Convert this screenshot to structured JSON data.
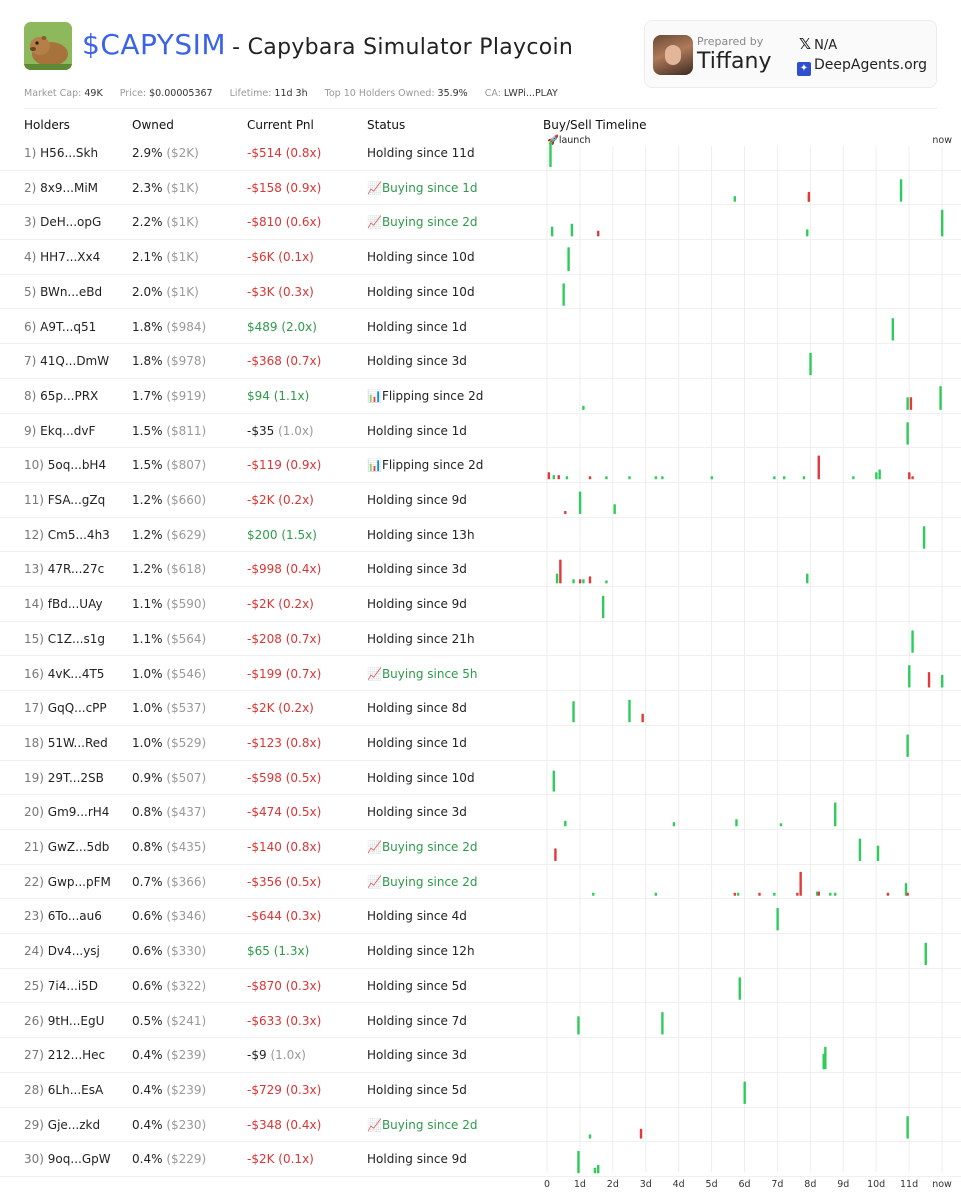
{
  "header": {
    "ticker": "$CAPYSIM",
    "subtitle": "- Capybara Simulator Playcoin",
    "prepared_label": "Prepared by",
    "prepared_name": "Tiffany",
    "x_handle": "N/A",
    "site": "DeepAgents.org"
  },
  "stats": {
    "market_cap_label": "Market Cap:",
    "market_cap": "49K",
    "price_label": "Price:",
    "price": "$0.00005367",
    "lifetime_label": "Lifetime:",
    "lifetime": "11d 3h",
    "top10_label": "Top 10 Holders Owned:",
    "top10": "35.9%",
    "ca_label": "CA:",
    "ca": "LWPi...PLAY"
  },
  "columns": {
    "holders": "Holders",
    "owned": "Owned",
    "pnl": "Current Pnl",
    "status": "Status",
    "timeline": "Buy/Sell Timeline"
  },
  "timeline_labels": {
    "launch": "🚀launch",
    "now": "now",
    "ticks": [
      "0",
      "1d",
      "2d",
      "3d",
      "4d",
      "5d",
      "6d",
      "7d",
      "8d",
      "9d",
      "10d",
      "11d",
      "now"
    ]
  },
  "colors": {
    "buy": "#2ecc5a",
    "sell": "#e03a3a",
    "accent": "#3b63e8"
  },
  "rows": [
    {
      "idx": "1)",
      "holder": "H56...Skh",
      "pct": "2.9%",
      "usd": "($2K)",
      "pnl": "-$514",
      "mult": "(0.8x)",
      "pnl_color": "red",
      "status": "Holding since 11d",
      "status_color": "dark"
    },
    {
      "idx": "2)",
      "holder": "8x9...MiM",
      "pct": "2.3%",
      "usd": "($1K)",
      "pnl": "-$158",
      "mult": "(0.9x)",
      "pnl_color": "red",
      "status": "📈Buying since 1d",
      "status_color": "green"
    },
    {
      "idx": "3)",
      "holder": "DeH...opG",
      "pct": "2.2%",
      "usd": "($1K)",
      "pnl": "-$810",
      "mult": "(0.6x)",
      "pnl_color": "red",
      "status": "📈Buying since 2d",
      "status_color": "green"
    },
    {
      "idx": "4)",
      "holder": "HH7...Xx4",
      "pct": "2.1%",
      "usd": "($1K)",
      "pnl": "-$6K",
      "mult": "(0.1x)",
      "pnl_color": "red",
      "status": "Holding since 10d",
      "status_color": "dark"
    },
    {
      "idx": "5)",
      "holder": "BWn...eBd",
      "pct": "2.0%",
      "usd": "($1K)",
      "pnl": "-$3K",
      "mult": "(0.3x)",
      "pnl_color": "red",
      "status": "Holding since 10d",
      "status_color": "dark"
    },
    {
      "idx": "6)",
      "holder": "A9T...q51",
      "pct": "1.8%",
      "usd": "($984)",
      "pnl": "$489",
      "mult": "(2.0x)",
      "pnl_color": "green",
      "status": "Holding since 1d",
      "status_color": "dark"
    },
    {
      "idx": "7)",
      "holder": "41Q...DmW",
      "pct": "1.8%",
      "usd": "($978)",
      "pnl": "-$368",
      "mult": "(0.7x)",
      "pnl_color": "red",
      "status": "Holding since 3d",
      "status_color": "dark"
    },
    {
      "idx": "8)",
      "holder": "65p...PRX",
      "pct": "1.7%",
      "usd": "($919)",
      "pnl": "$94",
      "mult": "(1.1x)",
      "pnl_color": "green",
      "status": "📊Flipping since 2d",
      "status_color": "dark"
    },
    {
      "idx": "9)",
      "holder": "Ekq...dvF",
      "pct": "1.5%",
      "usd": "($811)",
      "pnl": "-$35",
      "mult": "(1.0x)",
      "pnl_color": "dark",
      "status": "Holding since 1d",
      "status_color": "dark"
    },
    {
      "idx": "10)",
      "holder": "5oq...bH4",
      "pct": "1.5%",
      "usd": "($807)",
      "pnl": "-$119",
      "mult": "(0.9x)",
      "pnl_color": "red",
      "status": "📊Flipping since 2d",
      "status_color": "dark"
    },
    {
      "idx": "11)",
      "holder": "FSA...gZq",
      "pct": "1.2%",
      "usd": "($660)",
      "pnl": "-$2K",
      "mult": "(0.2x)",
      "pnl_color": "red",
      "status": "Holding since 9d",
      "status_color": "dark"
    },
    {
      "idx": "12)",
      "holder": "Cm5...4h3",
      "pct": "1.2%",
      "usd": "($629)",
      "pnl": "$200",
      "mult": "(1.5x)",
      "pnl_color": "green",
      "status": "Holding since 13h",
      "status_color": "dark"
    },
    {
      "idx": "13)",
      "holder": "47R...27c",
      "pct": "1.2%",
      "usd": "($618)",
      "pnl": "-$998",
      "mult": "(0.4x)",
      "pnl_color": "red",
      "status": "Holding since 3d",
      "status_color": "dark"
    },
    {
      "idx": "14)",
      "holder": "fBd...UAy",
      "pct": "1.1%",
      "usd": "($590)",
      "pnl": "-$2K",
      "mult": "(0.2x)",
      "pnl_color": "red",
      "status": "Holding since 9d",
      "status_color": "dark"
    },
    {
      "idx": "15)",
      "holder": "C1Z...s1g",
      "pct": "1.1%",
      "usd": "($564)",
      "pnl": "-$208",
      "mult": "(0.7x)",
      "pnl_color": "red",
      "status": "Holding since 21h",
      "status_color": "dark"
    },
    {
      "idx": "16)",
      "holder": "4vK...4T5",
      "pct": "1.0%",
      "usd": "($546)",
      "pnl": "-$199",
      "mult": "(0.7x)",
      "pnl_color": "red",
      "status": "📈Buying since 5h",
      "status_color": "green"
    },
    {
      "idx": "17)",
      "holder": "GqQ...cPP",
      "pct": "1.0%",
      "usd": "($537)",
      "pnl": "-$2K",
      "mult": "(0.2x)",
      "pnl_color": "red",
      "status": "Holding since 8d",
      "status_color": "dark"
    },
    {
      "idx": "18)",
      "holder": "51W...Red",
      "pct": "1.0%",
      "usd": "($529)",
      "pnl": "-$123",
      "mult": "(0.8x)",
      "pnl_color": "red",
      "status": "Holding since 1d",
      "status_color": "dark"
    },
    {
      "idx": "19)",
      "holder": "29T...2SB",
      "pct": "0.9%",
      "usd": "($507)",
      "pnl": "-$598",
      "mult": "(0.5x)",
      "pnl_color": "red",
      "status": "Holding since 10d",
      "status_color": "dark"
    },
    {
      "idx": "20)",
      "holder": "Gm9...rH4",
      "pct": "0.8%",
      "usd": "($437)",
      "pnl": "-$474",
      "mult": "(0.5x)",
      "pnl_color": "red",
      "status": "Holding since 3d",
      "status_color": "dark"
    },
    {
      "idx": "21)",
      "holder": "GwZ...5db",
      "pct": "0.8%",
      "usd": "($435)",
      "pnl": "-$140",
      "mult": "(0.8x)",
      "pnl_color": "red",
      "status": "📈Buying since 2d",
      "status_color": "green"
    },
    {
      "idx": "22)",
      "holder": "Gwp...pFM",
      "pct": "0.7%",
      "usd": "($366)",
      "pnl": "-$356",
      "mult": "(0.5x)",
      "pnl_color": "red",
      "status": "📈Buying since 2d",
      "status_color": "green"
    },
    {
      "idx": "23)",
      "holder": "6To...au6",
      "pct": "0.6%",
      "usd": "($346)",
      "pnl": "-$644",
      "mult": "(0.3x)",
      "pnl_color": "red",
      "status": "Holding since 4d",
      "status_color": "dark"
    },
    {
      "idx": "24)",
      "holder": "Dv4...ysj",
      "pct": "0.6%",
      "usd": "($330)",
      "pnl": "$65",
      "mult": "(1.3x)",
      "pnl_color": "green",
      "status": "Holding since 12h",
      "status_color": "dark"
    },
    {
      "idx": "25)",
      "holder": "7i4...i5D",
      "pct": "0.6%",
      "usd": "($322)",
      "pnl": "-$870",
      "mult": "(0.3x)",
      "pnl_color": "red",
      "status": "Holding since 5d",
      "status_color": "dark"
    },
    {
      "idx": "26)",
      "holder": "9tH...EgU",
      "pct": "0.5%",
      "usd": "($241)",
      "pnl": "-$633",
      "mult": "(0.3x)",
      "pnl_color": "red",
      "status": "Holding since 7d",
      "status_color": "dark"
    },
    {
      "idx": "27)",
      "holder": "212...Hec",
      "pct": "0.4%",
      "usd": "($239)",
      "pnl": "-$9",
      "mult": "(1.0x)",
      "pnl_color": "dark",
      "status": "Holding since 3d",
      "status_color": "dark"
    },
    {
      "idx": "28)",
      "holder": "6Lh...EsA",
      "pct": "0.4%",
      "usd": "($239)",
      "pnl": "-$729",
      "mult": "(0.3x)",
      "pnl_color": "red",
      "status": "Holding since 5d",
      "status_color": "dark"
    },
    {
      "idx": "29)",
      "holder": "Gje...zkd",
      "pct": "0.4%",
      "usd": "($230)",
      "pnl": "-$348",
      "mult": "(0.4x)",
      "pnl_color": "red",
      "status": "📈Buying since 2d",
      "status_color": "green"
    },
    {
      "idx": "30)",
      "holder": "9oq...GpW",
      "pct": "0.4%",
      "usd": "($229)",
      "pnl": "-$2K",
      "mult": "(0.1x)",
      "pnl_color": "red",
      "status": "Holding since 9d",
      "status_color": "dark"
    }
  ],
  "chart_data": {
    "type": "bar",
    "title": "Buy/Sell Timeline",
    "x_unit": "days since launch",
    "xlim": [
      0,
      12
    ],
    "series_names": [
      "buy",
      "sell"
    ],
    "bar_scale": "relative size, 0-1",
    "events": [
      [
        {
          "t": 0.1,
          "s": "b",
          "h": 0.9
        }
      ],
      [
        {
          "t": 5.7,
          "s": "b",
          "h": 0.2
        },
        {
          "t": 7.95,
          "s": "b",
          "h": 0.25
        },
        {
          "t": 7.95,
          "s": "s",
          "h": 0.35
        },
        {
          "t": 10.75,
          "s": "b",
          "h": 0.8
        }
      ],
      [
        {
          "t": 0.15,
          "s": "b",
          "h": 0.35
        },
        {
          "t": 0.75,
          "s": "b",
          "h": 0.45
        },
        {
          "t": 1.55,
          "s": "s",
          "h": 0.2
        },
        {
          "t": 7.9,
          "s": "b",
          "h": 0.25
        },
        {
          "t": 12.0,
          "s": "b",
          "h": 0.95
        }
      ],
      [
        {
          "t": 0.65,
          "s": "b",
          "h": 0.85
        }
      ],
      [
        {
          "t": 0.5,
          "s": "b",
          "h": 0.8
        }
      ],
      [
        {
          "t": 10.5,
          "s": "b",
          "h": 0.8
        }
      ],
      [
        {
          "t": 8.0,
          "s": "b",
          "h": 0.8
        }
      ],
      [
        {
          "t": 1.1,
          "s": "b",
          "h": 0.15
        },
        {
          "t": 10.95,
          "s": "b",
          "h": 0.45
        },
        {
          "t": 11.05,
          "s": "s",
          "h": 0.45
        },
        {
          "t": 11.95,
          "s": "b",
          "h": 0.85
        }
      ],
      [
        {
          "t": 10.95,
          "s": "b",
          "h": 0.8
        }
      ],
      [
        {
          "t": 0.05,
          "s": "s",
          "h": 0.25
        },
        {
          "t": 0.2,
          "s": "b",
          "h": 0.15
        },
        {
          "t": 0.35,
          "s": "s",
          "h": 0.15
        },
        {
          "t": 0.6,
          "s": "b",
          "h": 0.1
        },
        {
          "t": 1.3,
          "s": "s",
          "h": 0.1
        },
        {
          "t": 1.8,
          "s": "b",
          "h": 0.1
        },
        {
          "t": 2.5,
          "s": "b",
          "h": 0.1
        },
        {
          "t": 3.3,
          "s": "b",
          "h": 0.1
        },
        {
          "t": 3.5,
          "s": "b",
          "h": 0.1
        },
        {
          "t": 5.0,
          "s": "b",
          "h": 0.1
        },
        {
          "t": 6.9,
          "s": "b",
          "h": 0.1
        },
        {
          "t": 7.2,
          "s": "b",
          "h": 0.1
        },
        {
          "t": 7.8,
          "s": "b",
          "h": 0.1
        },
        {
          "t": 8.25,
          "s": "s",
          "h": 0.85
        },
        {
          "t": 9.3,
          "s": "b",
          "h": 0.1
        },
        {
          "t": 10.0,
          "s": "b",
          "h": 0.25
        },
        {
          "t": 10.1,
          "s": "b",
          "h": 0.35
        },
        {
          "t": 11.0,
          "s": "s",
          "h": 0.25
        },
        {
          "t": 11.1,
          "s": "s",
          "h": 0.1
        }
      ],
      [
        {
          "t": 0.55,
          "s": "s",
          "h": 0.1
        },
        {
          "t": 1.0,
          "s": "b",
          "h": 0.8
        },
        {
          "t": 2.05,
          "s": "b",
          "h": 0.35
        }
      ],
      [
        {
          "t": 11.45,
          "s": "b",
          "h": 0.8
        }
      ],
      [
        {
          "t": 0.3,
          "s": "b",
          "h": 0.35
        },
        {
          "t": 0.4,
          "s": "s",
          "h": 0.85
        },
        {
          "t": 0.8,
          "s": "b",
          "h": 0.15
        },
        {
          "t": 1.0,
          "s": "s",
          "h": 0.15
        },
        {
          "t": 1.1,
          "s": "b",
          "h": 0.15
        },
        {
          "t": 1.3,
          "s": "s",
          "h": 0.25
        },
        {
          "t": 1.8,
          "s": "b",
          "h": 0.1
        },
        {
          "t": 7.9,
          "s": "b",
          "h": 0.35
        }
      ],
      [
        {
          "t": 1.7,
          "s": "b",
          "h": 0.8
        }
      ],
      [
        {
          "t": 11.1,
          "s": "b",
          "h": 0.8
        }
      ],
      [
        {
          "t": 11.0,
          "s": "b",
          "h": 0.8
        },
        {
          "t": 11.6,
          "s": "s",
          "h": 0.55
        },
        {
          "t": 12.0,
          "s": "b",
          "h": 0.45
        }
      ],
      [
        {
          "t": 0.8,
          "s": "b",
          "h": 0.75
        },
        {
          "t": 2.5,
          "s": "b",
          "h": 0.8
        },
        {
          "t": 2.9,
          "s": "s",
          "h": 0.3
        }
      ],
      [
        {
          "t": 10.95,
          "s": "b",
          "h": 0.8
        }
      ],
      [
        {
          "t": 0.2,
          "s": "b",
          "h": 0.75
        }
      ],
      [
        {
          "t": 0.55,
          "s": "b",
          "h": 0.2
        },
        {
          "t": 3.85,
          "s": "b",
          "h": 0.15
        },
        {
          "t": 5.75,
          "s": "b",
          "h": 0.25
        },
        {
          "t": 7.1,
          "s": "b",
          "h": 0.1
        },
        {
          "t": 8.75,
          "s": "b",
          "h": 0.85
        }
      ],
      [
        {
          "t": 0.25,
          "s": "s",
          "h": 0.45
        },
        {
          "t": 9.5,
          "s": "b",
          "h": 0.8
        },
        {
          "t": 10.05,
          "s": "b",
          "h": 0.55
        }
      ],
      [
        {
          "t": 1.4,
          "s": "b",
          "h": 0.1
        },
        {
          "t": 3.3,
          "s": "b",
          "h": 0.1
        },
        {
          "t": 5.7,
          "s": "s",
          "h": 0.1
        },
        {
          "t": 5.8,
          "s": "b",
          "h": 0.1
        },
        {
          "t": 6.45,
          "s": "s",
          "h": 0.1
        },
        {
          "t": 6.9,
          "s": "b",
          "h": 0.1
        },
        {
          "t": 7.6,
          "s": "s",
          "h": 0.1
        },
        {
          "t": 7.7,
          "s": "s",
          "h": 0.85
        },
        {
          "t": 8.2,
          "s": "b",
          "h": 0.15
        },
        {
          "t": 8.25,
          "s": "s",
          "h": 0.15
        },
        {
          "t": 8.6,
          "s": "b",
          "h": 0.1
        },
        {
          "t": 8.75,
          "s": "b",
          "h": 0.1
        },
        {
          "t": 10.35,
          "s": "s",
          "h": 0.1
        },
        {
          "t": 10.9,
          "s": "b",
          "h": 0.45
        },
        {
          "t": 10.95,
          "s": "s",
          "h": 0.1
        }
      ],
      [
        {
          "t": 7.0,
          "s": "b",
          "h": 0.8
        }
      ],
      [
        {
          "t": 11.5,
          "s": "b",
          "h": 0.8
        }
      ],
      [
        {
          "t": 5.85,
          "s": "b",
          "h": 0.8
        }
      ],
      [
        {
          "t": 0.95,
          "s": "b",
          "h": 0.65
        },
        {
          "t": 3.5,
          "s": "b",
          "h": 0.8
        }
      ],
      [
        {
          "t": 8.4,
          "s": "b",
          "h": 0.55
        },
        {
          "t": 8.45,
          "s": "b",
          "h": 0.8
        }
      ],
      [
        {
          "t": 6.0,
          "s": "b",
          "h": 0.8
        }
      ],
      [
        {
          "t": 1.3,
          "s": "b",
          "h": 0.15
        },
        {
          "t": 2.85,
          "s": "s",
          "h": 0.35
        },
        {
          "t": 10.95,
          "s": "b",
          "h": 0.8
        }
      ],
      [
        {
          "t": 0.95,
          "s": "b",
          "h": 0.8
        },
        {
          "t": 1.45,
          "s": "b",
          "h": 0.2
        },
        {
          "t": 1.55,
          "s": "b",
          "h": 0.3
        }
      ]
    ]
  }
}
